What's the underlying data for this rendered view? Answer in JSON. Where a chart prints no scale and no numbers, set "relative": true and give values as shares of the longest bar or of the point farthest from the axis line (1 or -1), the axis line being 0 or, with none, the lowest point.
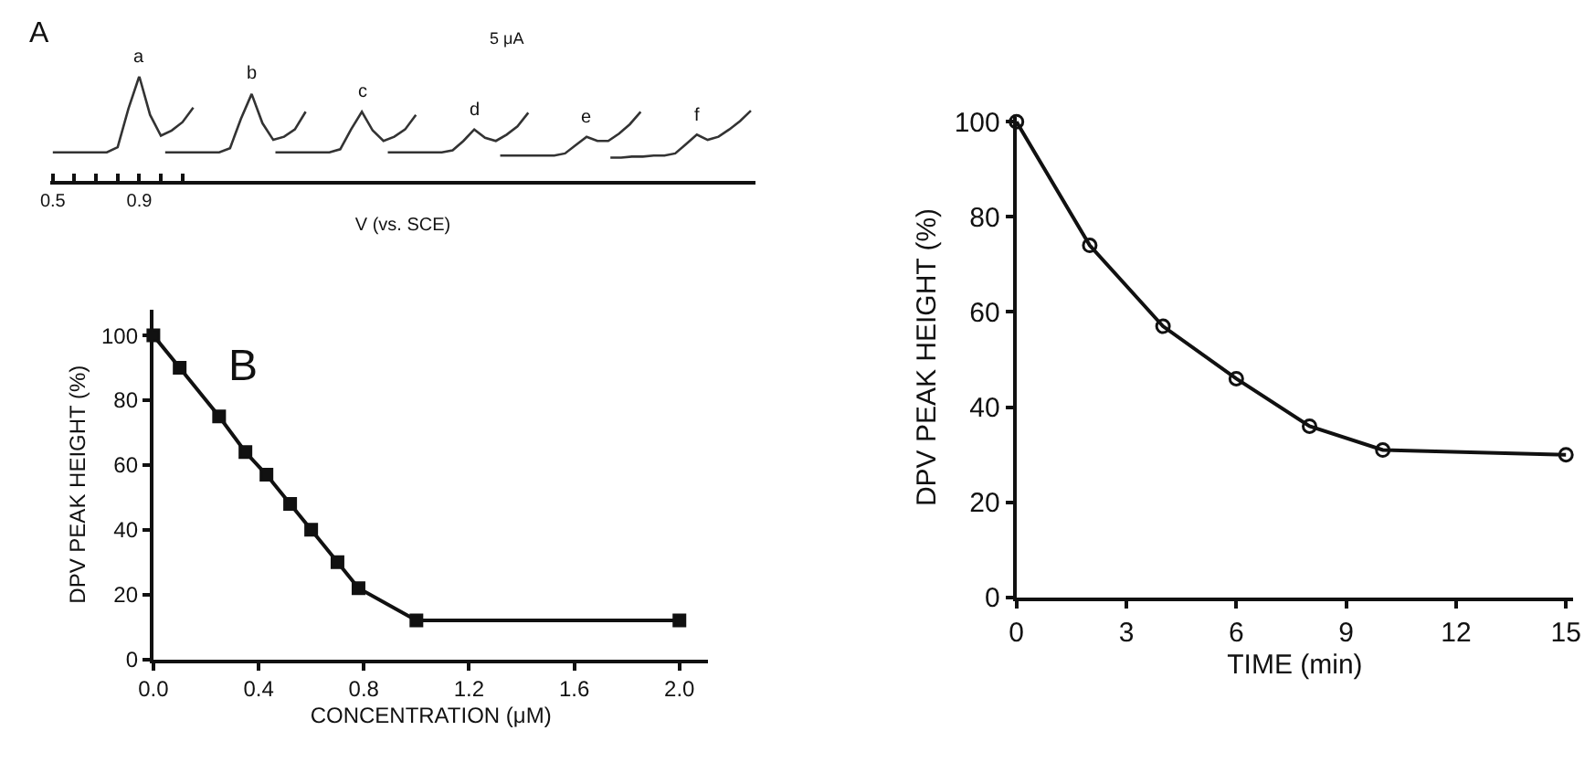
{
  "chart_data": [
    {
      "type": "line",
      "relative": true,
      "xlabel": "V (vs. SCE)",
      "xlim": [
        0.49,
        3.75
      ],
      "xticks": [
        0.5,
        {
          "value": 0.6,
          "label": null
        },
        {
          "value": 0.7,
          "label": null
        },
        {
          "value": 0.8,
          "label": null
        },
        0.9,
        {
          "value": 1.0,
          "label": null
        },
        {
          "value": 1.1,
          "label": null
        }
      ],
      "tick_labels": "x",
      "annotations": [
        "A",
        "5 μA",
        {
          "text": "a",
          "x": 0.9,
          "y": 1.0
        },
        {
          "text": "b",
          "x": 1.42,
          "y": 0.83
        },
        {
          "text": "c",
          "x": 1.93,
          "y": 0.66
        },
        {
          "text": "d",
          "x": 2.45,
          "y": 0.49
        },
        {
          "text": "e",
          "x": 2.97,
          "y": 0.42
        },
        {
          "text": "f",
          "x": 3.48,
          "y": 0.44
        }
      ],
      "series": [
        {
          "color": "#333333",
          "x": [
            0.5,
            0.55,
            0.6,
            0.65,
            0.7,
            0.75,
            0.8,
            0.85,
            0.9,
            0.95,
            1.0,
            1.05,
            1.1,
            1.15
          ],
          "values": [
            0.27,
            0.27,
            0.27,
            0.27,
            0.27,
            0.27,
            0.32,
            0.69,
            1.0,
            0.63,
            0.43,
            0.48,
            0.56,
            0.7
          ]
        },
        {
          "color": "#333333",
          "x": [
            1.02,
            1.07,
            1.12,
            1.17,
            1.22,
            1.27,
            1.32,
            1.37,
            1.42,
            1.47,
            1.52,
            1.57,
            1.62,
            1.67
          ],
          "values": [
            0.27,
            0.27,
            0.27,
            0.27,
            0.27,
            0.27,
            0.31,
            0.59,
            0.83,
            0.55,
            0.39,
            0.42,
            0.49,
            0.66
          ]
        },
        {
          "color": "#333333",
          "x": [
            1.53,
            1.58,
            1.63,
            1.68,
            1.73,
            1.78,
            1.83,
            1.88,
            1.93,
            1.98,
            2.03,
            2.08,
            2.13,
            2.18
          ],
          "values": [
            0.27,
            0.27,
            0.27,
            0.27,
            0.27,
            0.27,
            0.3,
            0.49,
            0.66,
            0.48,
            0.38,
            0.42,
            0.49,
            0.63
          ]
        },
        {
          "color": "#333333",
          "x": [
            2.05,
            2.1,
            2.15,
            2.2,
            2.25,
            2.3,
            2.35,
            2.4,
            2.45,
            2.5,
            2.55,
            2.6,
            2.65,
            2.7
          ],
          "values": [
            0.27,
            0.27,
            0.27,
            0.27,
            0.27,
            0.27,
            0.29,
            0.38,
            0.49,
            0.41,
            0.38,
            0.44,
            0.52,
            0.65
          ]
        },
        {
          "color": "#333333",
          "x": [
            2.57,
            2.62,
            2.67,
            2.72,
            2.77,
            2.82,
            2.87,
            2.92,
            2.97,
            3.02,
            3.07,
            3.12,
            3.17,
            3.22
          ],
          "values": [
            0.24,
            0.24,
            0.24,
            0.24,
            0.24,
            0.24,
            0.26,
            0.34,
            0.42,
            0.38,
            0.38,
            0.45,
            0.54,
            0.66
          ]
        },
        {
          "color": "#333333",
          "x": [
            3.08,
            3.13,
            3.18,
            3.23,
            3.28,
            3.33,
            3.38,
            3.43,
            3.48,
            3.53,
            3.58,
            3.63,
            3.68,
            3.73
          ],
          "values": [
            0.22,
            0.22,
            0.23,
            0.23,
            0.24,
            0.24,
            0.26,
            0.35,
            0.44,
            0.39,
            0.42,
            0.49,
            0.57,
            0.67
          ]
        }
      ]
    },
    {
      "type": "line",
      "xlabel": "CONCENTRATION (μM)",
      "ylabel": "DPV PEAK HEIGHT (%)",
      "annotations": [
        "B"
      ],
      "marker": "square",
      "xlim": [
        0,
        2.11
      ],
      "ylim": [
        0,
        108
      ],
      "xticks": [
        {
          "value": 0,
          "label": "0.0"
        },
        0.4,
        0.8,
        1.2,
        1.6,
        {
          "value": 2,
          "label": "2.0"
        }
      ],
      "yticks": [
        0,
        20,
        40,
        60,
        80,
        100
      ],
      "x": [
        0,
        0.1,
        0.25,
        0.35,
        0.43,
        0.52,
        0.6,
        0.7,
        0.78,
        1.0,
        2.0
      ],
      "series": [
        {
          "color": "#111111",
          "values": [
            100,
            90,
            75,
            64,
            57,
            48,
            40,
            30,
            22,
            12,
            12
          ]
        }
      ]
    },
    {
      "type": "line",
      "xlabel": "TIME (min)",
      "ylabel": "DPV PEAK HEIGHT (%)",
      "marker": "circle",
      "xlim": [
        0,
        15.2
      ],
      "ylim": [
        0,
        101
      ],
      "xticks": [
        0,
        3,
        6,
        9,
        12,
        15
      ],
      "yticks": [
        0,
        20,
        40,
        60,
        80,
        100
      ],
      "x": [
        0,
        2,
        4,
        6,
        8,
        10,
        15
      ],
      "series": [
        {
          "color": "#111111",
          "values": [
            100,
            74,
            57,
            46,
            36,
            31,
            30
          ]
        }
      ]
    }
  ]
}
